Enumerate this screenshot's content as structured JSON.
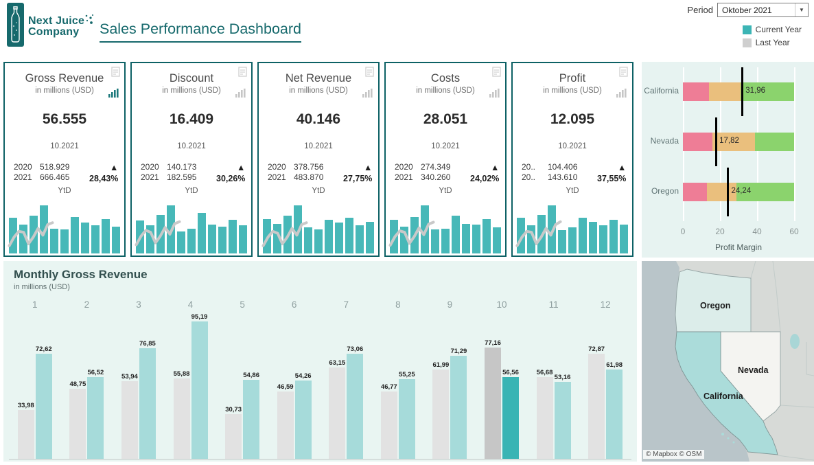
{
  "header": {
    "brand": {
      "line1": "Next Juice",
      "line2": "Company"
    },
    "title": "Sales Performance Dashboard",
    "period": {
      "label": "Period",
      "value": "Oktober 2021"
    },
    "legend": [
      {
        "label": "Current Year",
        "color": "#3cb5b5"
      },
      {
        "label": "Last Year",
        "color": "#cfcfcf"
      }
    ]
  },
  "kpi_cards": [
    {
      "title": "Gross Revenue",
      "subtitle": "in millions (USD)",
      "value": "56.555",
      "period": "10.2021",
      "prev_year": "2020",
      "curr_year": "2021",
      "prev_value": "518.929",
      "curr_value": "666.465",
      "delta": "▲ 28,43%",
      "ytd_label": "YtD",
      "chart_icon_active": true,
      "spark_bars": [
        0.74,
        0.6,
        0.78,
        1.0,
        0.52,
        0.5,
        0.76,
        0.64,
        0.58,
        0.72,
        0.56
      ],
      "spark_line": [
        0.16,
        0.34,
        0.46,
        0.44,
        0.2,
        0.34,
        0.52,
        0.38,
        0.6,
        0.64
      ]
    },
    {
      "title": "Discount",
      "subtitle": "in millions (USD)",
      "value": "16.409",
      "period": "10.2021",
      "prev_year": "2020",
      "curr_year": "2021",
      "prev_value": "140.173",
      "curr_value": "182.595",
      "delta": "▲ 30,26%",
      "ytd_label": "YtD",
      "chart_icon_active": false,
      "spark_bars": [
        0.68,
        0.58,
        0.8,
        1.0,
        0.46,
        0.52,
        0.84,
        0.6,
        0.56,
        0.7,
        0.58
      ],
      "spark_line": [
        0.18,
        0.36,
        0.48,
        0.44,
        0.22,
        0.36,
        0.54,
        0.4,
        0.62,
        0.66
      ]
    },
    {
      "title": "Net Revenue",
      "subtitle": "in millions (USD)",
      "value": "40.146",
      "period": "10.2021",
      "prev_year": "2020",
      "curr_year": "2021",
      "prev_value": "378.756",
      "curr_value": "483.870",
      "delta": "▲ 27,75%",
      "ytd_label": "YtD",
      "chart_icon_active": false,
      "spark_bars": [
        0.72,
        0.62,
        0.78,
        1.0,
        0.54,
        0.5,
        0.7,
        0.64,
        0.74,
        0.58,
        0.66
      ],
      "spark_line": [
        0.16,
        0.34,
        0.46,
        0.42,
        0.2,
        0.34,
        0.52,
        0.38,
        0.6,
        0.64
      ]
    },
    {
      "title": "Costs",
      "subtitle": "in millions (USD)",
      "value": "28.051",
      "period": "10.2021",
      "prev_year": "2020",
      "curr_year": "2021",
      "prev_value": "274.349",
      "curr_value": "340.260",
      "delta": "▲ 24,02%",
      "ytd_label": "YtD",
      "chart_icon_active": false,
      "spark_bars": [
        0.7,
        0.56,
        0.76,
        1.0,
        0.5,
        0.52,
        0.78,
        0.62,
        0.6,
        0.72,
        0.54
      ],
      "spark_line": [
        0.17,
        0.35,
        0.47,
        0.44,
        0.21,
        0.35,
        0.53,
        0.39,
        0.61,
        0.65
      ]
    },
    {
      "title": "Profit",
      "subtitle": "in millions (USD)",
      "value": "12.095",
      "period": "10.2021",
      "prev_year": "20..",
      "curr_year": "20..",
      "prev_value": "104.406",
      "curr_value": "143.610",
      "delta": "▲ 37,55%",
      "ytd_label": "YtD",
      "chart_icon_active": false,
      "spark_bars": [
        0.74,
        0.58,
        0.8,
        1.0,
        0.48,
        0.54,
        0.74,
        0.66,
        0.58,
        0.7,
        0.6
      ],
      "spark_line": [
        0.16,
        0.34,
        0.46,
        0.44,
        0.2,
        0.34,
        0.52,
        0.38,
        0.6,
        0.66
      ]
    }
  ],
  "chart_data": [
    {
      "type": "bar",
      "title": "Monthly Gross Revenue",
      "subtitle": "in millions (USD)",
      "categories": [
        "1",
        "2",
        "3",
        "4",
        "5",
        "6",
        "7",
        "8",
        "9",
        "10",
        "11",
        "12"
      ],
      "series": [
        {
          "name": "Last Year",
          "color": "#e2e2e2",
          "highlight_color": "#c6c6c6",
          "values": [
            33.98,
            48.75,
            53.94,
            55.88,
            30.73,
            46.59,
            63.15,
            46.77,
            61.99,
            77.16,
            56.68,
            72.87
          ],
          "labels": [
            "33,98",
            "48,75",
            "53,94",
            "55,88",
            "30,73",
            "46,59",
            "63,15",
            "46,77",
            "61,99",
            "77,16",
            "56,68",
            "72,87"
          ]
        },
        {
          "name": "Current Year",
          "color": "#a6dbda",
          "highlight_color": "#39b4b4",
          "values": [
            72.62,
            56.52,
            76.85,
            95.19,
            54.86,
            54.26,
            73.06,
            55.25,
            71.29,
            56.56,
            53.16,
            61.98
          ],
          "labels": [
            "72,62",
            "56,52",
            "76,85",
            "95,19",
            "54,86",
            "54,26",
            "73,06",
            "55,25",
            "71,29",
            "56,56",
            "53,16",
            "61,98"
          ]
        }
      ],
      "highlighted_category": "10",
      "ylim": [
        0,
        100
      ],
      "grid": false,
      "value_labels": true
    },
    {
      "type": "bullet-bar",
      "xlabel": "Profit Margin",
      "xlim": [
        0,
        60
      ],
      "tick_values": [
        0,
        20,
        40,
        60
      ],
      "tick_labels": [
        "0",
        "20",
        "40",
        "60"
      ],
      "band_colors": [
        "#ee7d96",
        "#eabf7d",
        "#8bd36d"
      ],
      "rows": [
        {
          "label": "California",
          "value": 31.96,
          "value_label": "31,96",
          "bands": [
            14,
            31,
            60
          ]
        },
        {
          "label": "Nevada",
          "value": 17.82,
          "value_label": "17,82",
          "bands": [
            16,
            39,
            60
          ]
        },
        {
          "label": "Oregon",
          "value": 24.24,
          "value_label": "24,24",
          "bands": [
            13,
            29,
            60
          ]
        }
      ]
    }
  ],
  "map": {
    "states": [
      {
        "name": "Oregon",
        "fill": "#dcedea"
      },
      {
        "name": "Nevada",
        "fill": "#f4f4f1"
      },
      {
        "name": "California",
        "fill": "#abdcda"
      }
    ],
    "attribution": "© Mapbox © OSM"
  }
}
